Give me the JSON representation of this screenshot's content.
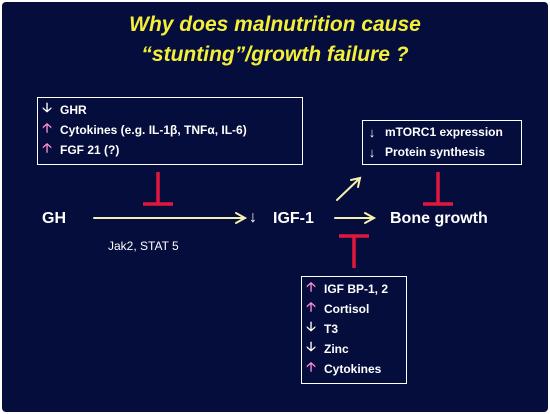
{
  "title": {
    "line1": "Why does malnutrition cause",
    "line2": "“stunting”/growth failure ?"
  },
  "left_box": {
    "items": [
      {
        "dir": "down",
        "label": "GHR"
      },
      {
        "dir": "up",
        "label": "Cytokines (e.g. IL-1β, TNFα, IL-6)"
      },
      {
        "dir": "up",
        "label": "FGF 21 (?)"
      }
    ]
  },
  "right_box": {
    "items": [
      {
        "dir": "down",
        "label": "mTORC1 expression"
      },
      {
        "dir": "down",
        "label": "Protein synthesis"
      }
    ]
  },
  "bottom_box": {
    "items": [
      {
        "dir": "up",
        "label": "IGF BP-1, 2"
      },
      {
        "dir": "up",
        "label": "Cortisol"
      },
      {
        "dir": "down",
        "label": "T3"
      },
      {
        "dir": "down",
        "label": "Zinc"
      },
      {
        "dir": "up",
        "label": "Cytokines"
      }
    ]
  },
  "nodes": {
    "gh": "GH",
    "igf1_arrow": "↓",
    "igf1": "IGF-1",
    "bone": "Bone growth"
  },
  "pathway_label": "Jak2, STAT 5",
  "colors": {
    "background": "#050d3c",
    "title": "#f2ee3a",
    "increase_arrow": "#ff8fd2",
    "pathway_arrow": "#f5f0b0",
    "inhibitor": "#e3163c"
  }
}
